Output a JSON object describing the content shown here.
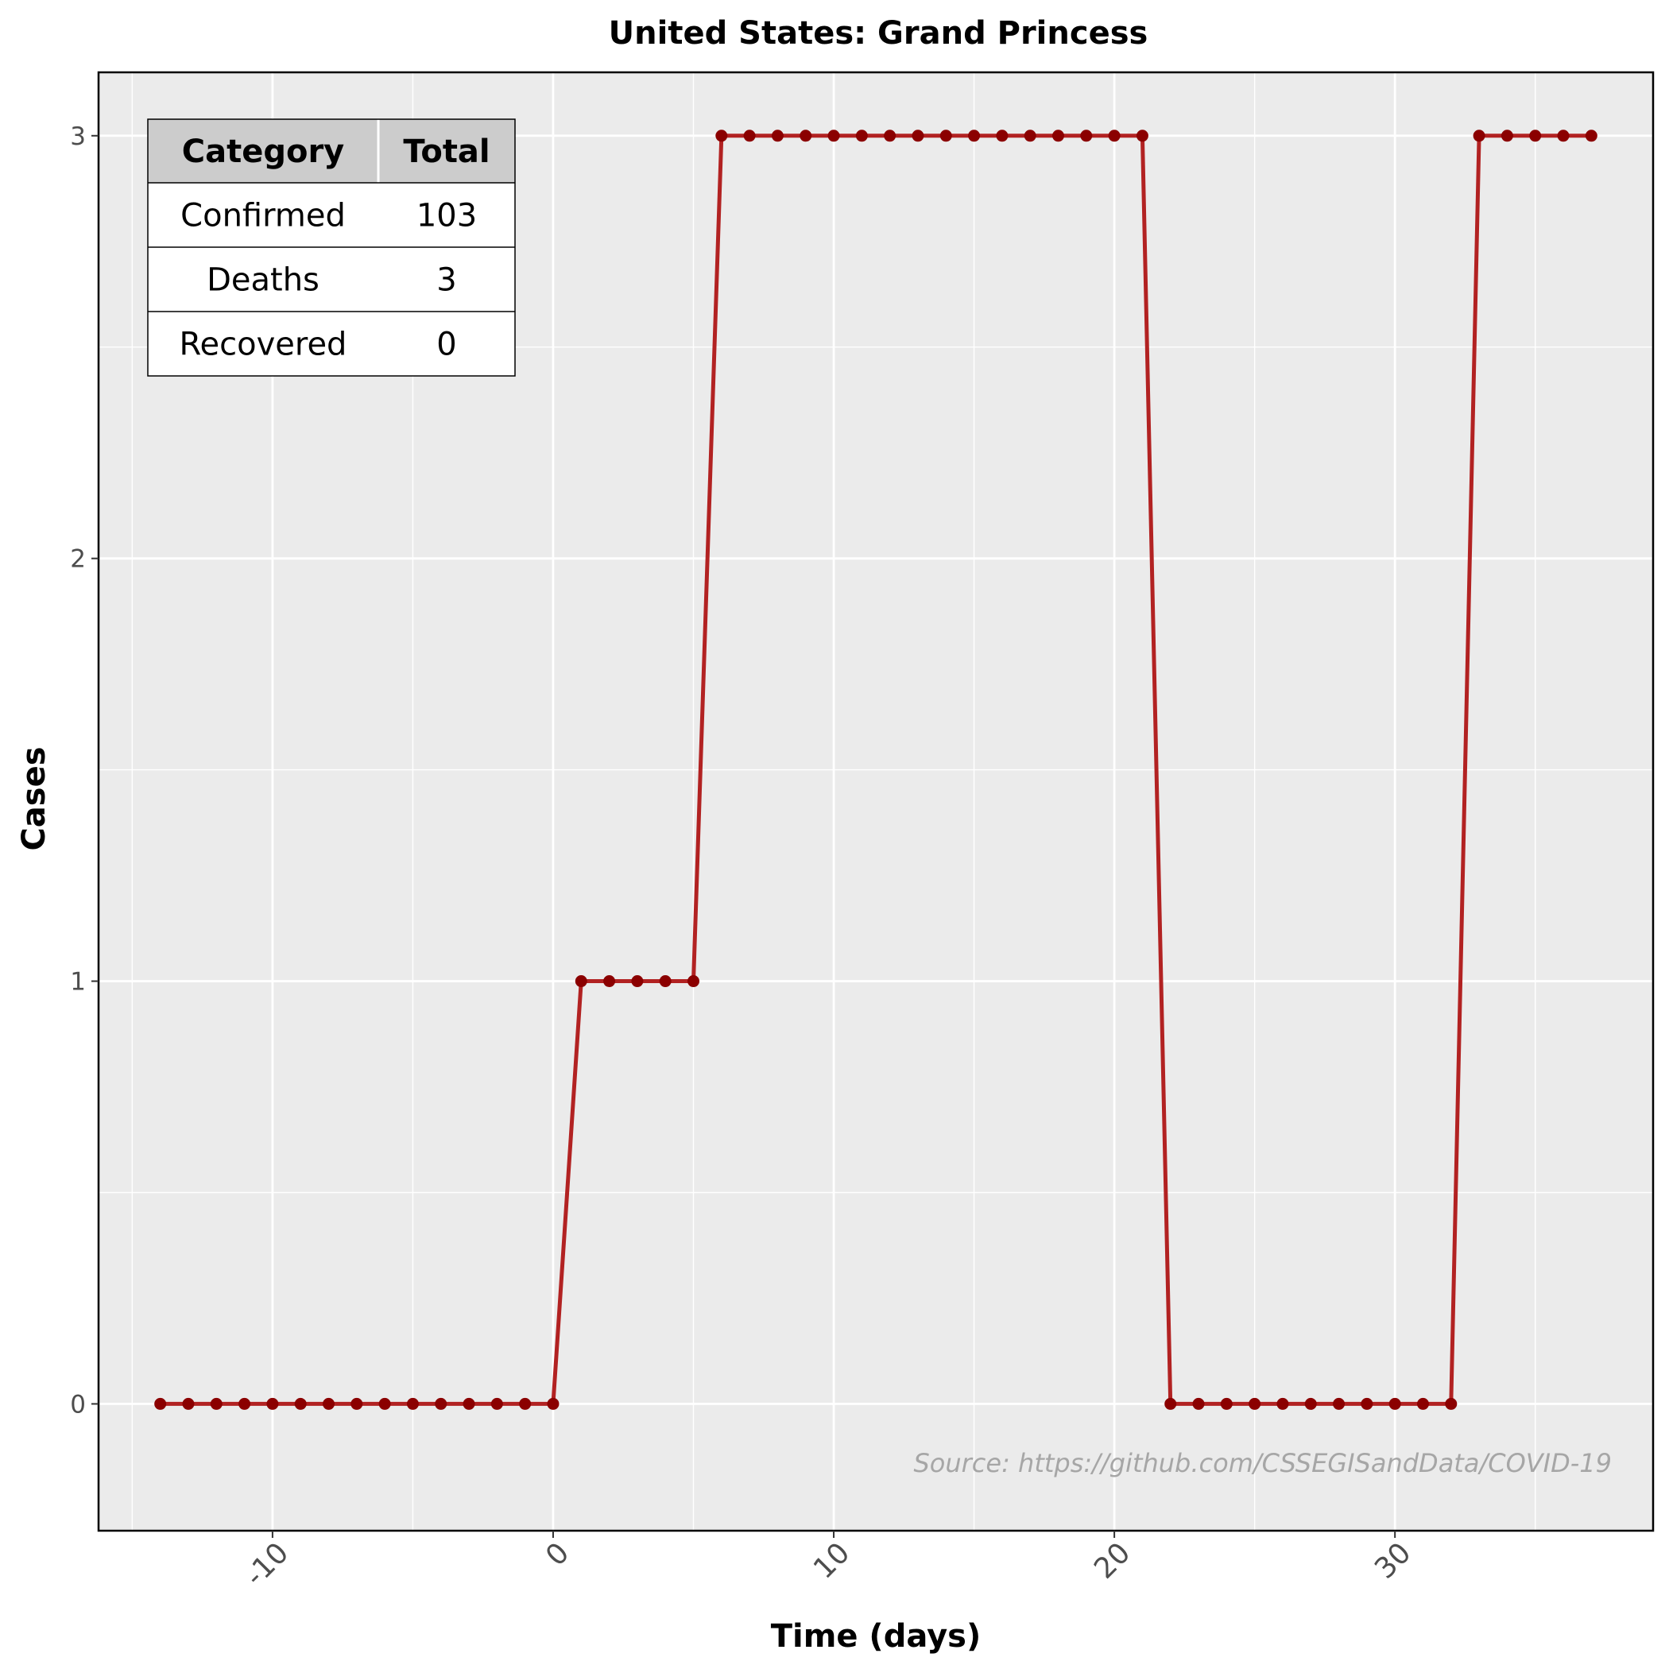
{
  "chart_data": {
    "type": "line",
    "title": "United States: Grand Princess",
    "xlabel": "Time (days)",
    "ylabel": "Cases",
    "xlim": [
      -16.2,
      39.2
    ],
    "ylim": [
      -0.3,
      3.15
    ],
    "xticks": [
      -10,
      0,
      10,
      20,
      30
    ],
    "xtick_labels": [
      "-10",
      "0",
      "10",
      "20",
      "30"
    ],
    "yticks": [
      0,
      1,
      2,
      3
    ],
    "ytick_labels": [
      "0",
      "1",
      "2",
      "3"
    ],
    "grid": true,
    "line_color": "#b22222",
    "marker_color": "#8b0000",
    "panel_background": "#ebebeb",
    "series": [
      {
        "x": [
          -14,
          -13,
          -12,
          -11,
          -10,
          -9,
          -8,
          -7,
          -6,
          -5,
          -4,
          -3,
          -2,
          -1,
          0,
          1,
          2,
          3,
          4,
          5,
          6,
          7,
          8,
          9,
          10,
          11,
          12,
          13,
          14,
          15,
          16,
          17,
          18,
          19,
          20,
          21,
          22,
          23,
          24,
          25,
          26,
          27,
          28,
          29,
          30,
          31,
          32,
          33,
          34,
          35,
          36,
          37
        ],
        "values": [
          0,
          0,
          0,
          0,
          0,
          0,
          0,
          0,
          0,
          0,
          0,
          0,
          0,
          0,
          0,
          1,
          1,
          1,
          1,
          1,
          3,
          3,
          3,
          3,
          3,
          3,
          3,
          3,
          3,
          3,
          3,
          3,
          3,
          3,
          3,
          3,
          0,
          0,
          0,
          0,
          0,
          0,
          0,
          0,
          0,
          0,
          0,
          3,
          3,
          3,
          3,
          3
        ]
      }
    ],
    "annotation": "Source: https://github.com/CSSEGISandData/COVID-19",
    "table": {
      "headers": [
        "Category",
        "Total"
      ],
      "rows": [
        [
          "Confirmed",
          "103"
        ],
        [
          "Deaths",
          "3"
        ],
        [
          "Recovered",
          "0"
        ]
      ]
    }
  }
}
